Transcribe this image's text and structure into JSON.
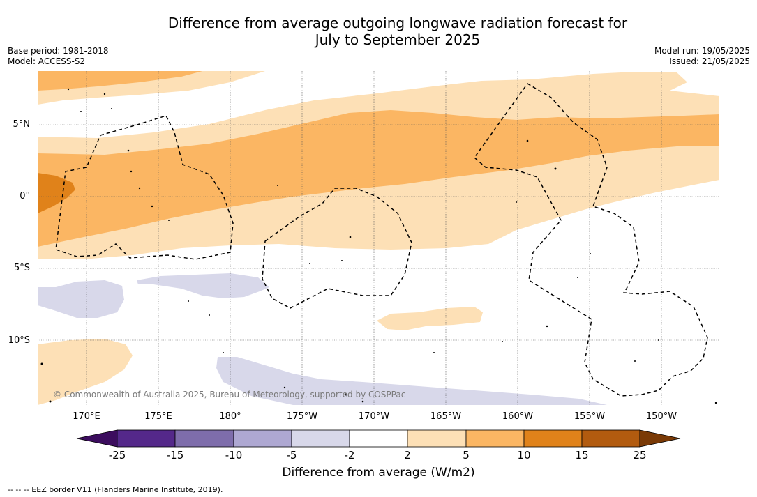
{
  "title_line1": "Difference from average outgoing longwave radiation forecast for",
  "title_line2": "July to September 2025",
  "base_period": "Base period: 1981-2018",
  "model": "Model: ACCESS-S2",
  "model_run": "Model run: 19/05/2025",
  "issued": "Issued: 21/05/2025",
  "lat_labels": [
    "5°N",
    "0°",
    "5°S",
    "10°S"
  ],
  "lon_labels": [
    "170°E",
    "175°E",
    "180°",
    "175°W",
    "170°W",
    "165°W",
    "160°W",
    "155°W",
    "150°W"
  ],
  "credit": "© Commonwealth of Australia 2025, Bureau of Meteorology, supported by COSPPac",
  "colorbar": {
    "ticks": [
      "-25",
      "-15",
      "-10",
      "-5",
      "-2",
      "2",
      "5",
      "10",
      "15",
      "25"
    ],
    "colors": [
      "#3c0d5e",
      "#54288a",
      "#7e6dab",
      "#aea8d2",
      "#d8d8ea",
      "#ffffff",
      "#fde0b6",
      "#fbb663",
      "#e0821a",
      "#b25b0f",
      "#7a3a06"
    ],
    "label": "Difference from average (W/m2)"
  },
  "footnote": "-- -- -- EEZ border V11 (Flanders Marine Institute, 2019).",
  "colors": {
    "light_orange": "#fde0b6",
    "mid_orange": "#fbb663",
    "dark_orange": "#e0821a",
    "light_purple": "#d8d8ea"
  }
}
